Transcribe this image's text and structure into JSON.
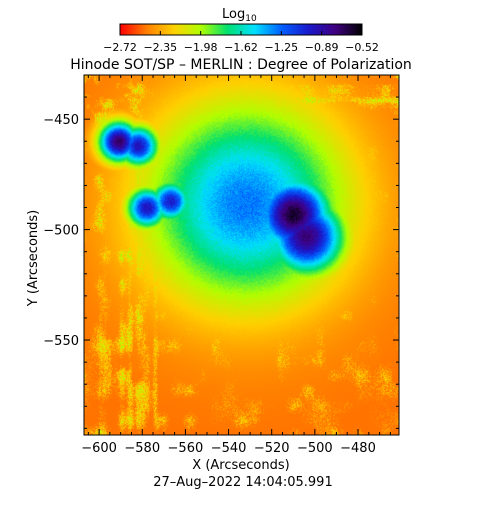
{
  "chart_data": {
    "type": "heatmap",
    "title": "Hinode SOT/SP – MERLIN : Degree of Polarization",
    "xlabel": "X (Arcseconds)",
    "ylabel": "Y (Arcseconds)",
    "xlim": [
      -607,
      -461
    ],
    "ylim": [
      -593,
      -430
    ],
    "xticks": [
      -600,
      -580,
      -560,
      -540,
      -520,
      -500,
      -480
    ],
    "yticks": [
      -550,
      -500,
      -450
    ],
    "xtick_labels": [
      "−600",
      "−580",
      "−560",
      "−540",
      "−520",
      "−500",
      "−480"
    ],
    "ytick_labels": [
      "−550",
      "−500",
      "−450"
    ],
    "colorbar": {
      "label": "Log",
      "label_sub": "10",
      "range": [
        -2.72,
        -0.52
      ],
      "tick_labels": [
        "−2.72",
        "−2.35",
        "−1.98",
        "−1.62",
        "−1.25",
        "−0.89",
        "−0.52"
      ],
      "colors": [
        "#ff0000",
        "#ff7f00",
        "#ffd000",
        "#b0ff00",
        "#00e070",
        "#00e0ff",
        "#0060ff",
        "#1a1acc",
        "#400080",
        "#000000"
      ]
    },
    "background_log_value": -2.5,
    "features": [
      {
        "name": "leading-spot",
        "x": -510,
        "y": -493,
        "peak": -0.6
      },
      {
        "name": "leading-spot-south",
        "x": -504,
        "y": -503,
        "peak": -0.75
      },
      {
        "name": "west-pore",
        "x": -591,
        "y": -460,
        "peak": -0.7
      },
      {
        "name": "west-pore-2",
        "x": -582,
        "y": -462,
        "peak": -0.95
      },
      {
        "name": "mid-pore",
        "x": -578,
        "y": -490,
        "peak": -0.95
      },
      {
        "name": "mid-pore-2",
        "x": -567,
        "y": -487,
        "peak": -1.0
      },
      {
        "name": "plage",
        "x": -532,
        "y": -488,
        "peak": -1.3
      }
    ]
  },
  "footer": {
    "timestamp": "27–Aug–2022 14:04:05.991"
  }
}
